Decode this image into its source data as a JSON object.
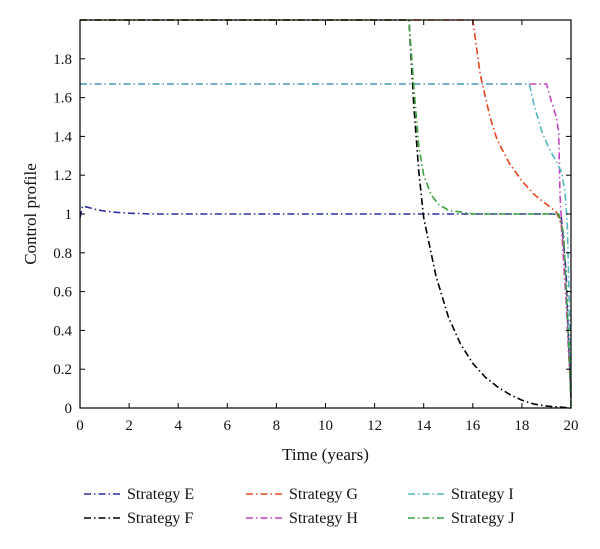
{
  "chart_data": {
    "type": "line",
    "xlabel": "Time (years)",
    "ylabel": "Control profile",
    "xlim": [
      0,
      20
    ],
    "ylim": [
      0,
      2
    ],
    "xticks": [
      0,
      2,
      4,
      6,
      8,
      10,
      12,
      14,
      16,
      18,
      20
    ],
    "yticks": [
      0,
      0.2,
      0.4,
      0.6,
      0.8,
      1,
      1.2,
      1.4,
      1.6,
      1.8
    ],
    "ytick_labels": [
      "0",
      "0.2",
      "0.4",
      "0.6",
      "0.8",
      "1",
      "1.2",
      "1.4",
      "1.6",
      "1.8"
    ],
    "grid": false,
    "legend_position": "bottom",
    "series": [
      {
        "name": "Strategy E",
        "color": "#2b2f9e",
        "dash": "dashdot",
        "x": [
          0,
          0.1,
          0.3,
          0.6,
          1,
          1.5,
          2,
          3,
          4,
          6,
          8,
          10,
          12,
          14,
          16,
          18,
          19.3,
          19.6,
          19.8,
          19.9,
          20
        ],
        "y": [
          0.98,
          1.04,
          1.035,
          1.025,
          1.015,
          1.008,
          1.004,
          1.0,
          1.0,
          1.0,
          1.0,
          1.0,
          1.0,
          1.0,
          1.0,
          1.0,
          1.0,
          0.99,
          0.7,
          0.35,
          0.05
        ]
      },
      {
        "name": "Strategy F",
        "color": "#000000",
        "dash": "dashdot",
        "x": [
          0,
          13.4,
          13.6,
          13.8,
          14,
          14.5,
          15,
          15.5,
          16,
          16.5,
          17,
          17.5,
          18,
          18.5,
          19,
          19.5,
          20
        ],
        "y": [
          2.0,
          2.0,
          1.55,
          1.22,
          0.98,
          0.68,
          0.47,
          0.33,
          0.23,
          0.16,
          0.11,
          0.07,
          0.04,
          0.02,
          0.01,
          0.005,
          0.0
        ]
      },
      {
        "name": "Strategy G",
        "color": "#e8431c",
        "dash": "dashdot",
        "x": [
          0,
          16,
          16.3,
          16.7,
          17,
          17.5,
          18,
          18.5,
          19,
          19.4,
          19.6,
          19.8,
          19.9,
          20
        ],
        "y": [
          2.0,
          2.0,
          1.72,
          1.5,
          1.38,
          1.26,
          1.17,
          1.1,
          1.05,
          1.01,
          0.95,
          0.6,
          0.3,
          0.05
        ]
      },
      {
        "name": "Strategy H",
        "color": "#c545c2",
        "dash": "dashdot",
        "x": [
          0,
          19.0,
          19.2,
          19.4,
          19.5,
          19.55,
          19.7,
          19.8,
          19.9,
          20
        ],
        "y": [
          1.67,
          1.67,
          1.58,
          1.5,
          1.42,
          1.1,
          0.75,
          0.55,
          0.3,
          0.1
        ]
      },
      {
        "name": "Strategy I",
        "color": "#52b6c0",
        "dash": "dashdot",
        "x": [
          0,
          18.3,
          18.5,
          18.8,
          19.1,
          19.4,
          19.6,
          19.75,
          19.85,
          19.92,
          20
        ],
        "y": [
          1.67,
          1.67,
          1.56,
          1.43,
          1.34,
          1.27,
          1.22,
          1.12,
          0.95,
          0.6,
          0.1
        ]
      },
      {
        "name": "Strategy J",
        "color": "#3aa340",
        "dash": "dashdot",
        "x": [
          0,
          13.4,
          13.6,
          13.8,
          14,
          14.3,
          14.6,
          15,
          15.5,
          16,
          17,
          19.5,
          19.7,
          19.85,
          19.95,
          20
        ],
        "y": [
          2.0,
          2.0,
          1.65,
          1.35,
          1.2,
          1.1,
          1.05,
          1.02,
          1.01,
          1.0,
          1.0,
          1.0,
          0.9,
          0.5,
          0.2,
          0.0
        ]
      }
    ]
  }
}
